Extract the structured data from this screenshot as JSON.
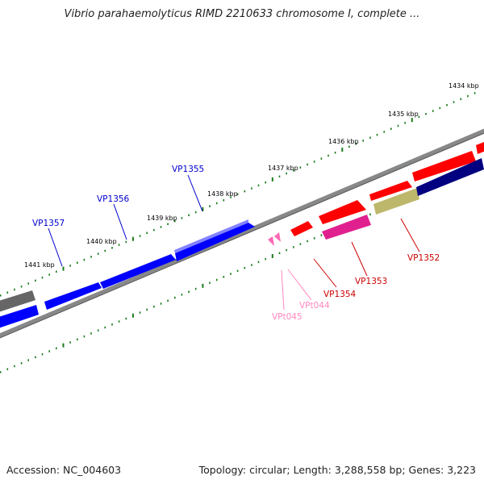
{
  "title": "Vibrio parahaemolyticus RIMD 2210633 chromosome I, complete ...",
  "footer": {
    "accession": "Accession: NC_004603",
    "summary": "Topology: circular; Length: 3,288,558 bp; Genes: 3,223"
  },
  "colors": {
    "backbone": "#888888",
    "tick": "#1a7a1a",
    "cds": "#0000ff",
    "cds_red": "#ff0000",
    "trna": "#ff69b4",
    "navy": "#000080",
    "khaki": "#bdb76b",
    "magenta": "#e0208e",
    "gray_gene": "#666666",
    "label_blue": "#0000cc",
    "label_red": "#cc0000",
    "label_pink": "#ff88c0"
  },
  "scale_labels": [
    "1434 kbp",
    "1435 kbp",
    "1436 kbp",
    "1437 kbp",
    "1438 kbp",
    "1439 kbp",
    "1440 kbp",
    "1441 kbp"
  ],
  "gene_labels": [
    {
      "text": "VP1355",
      "color": "blue"
    },
    {
      "text": "VP1356",
      "color": "blue"
    },
    {
      "text": "VP1357",
      "color": "blue"
    },
    {
      "text": "VP1352",
      "color": "red"
    },
    {
      "text": "VP1353",
      "color": "red"
    },
    {
      "text": "VP1354",
      "color": "red"
    },
    {
      "text": "VPt044",
      "color": "pink"
    },
    {
      "text": "VPt045",
      "color": "pink"
    }
  ]
}
